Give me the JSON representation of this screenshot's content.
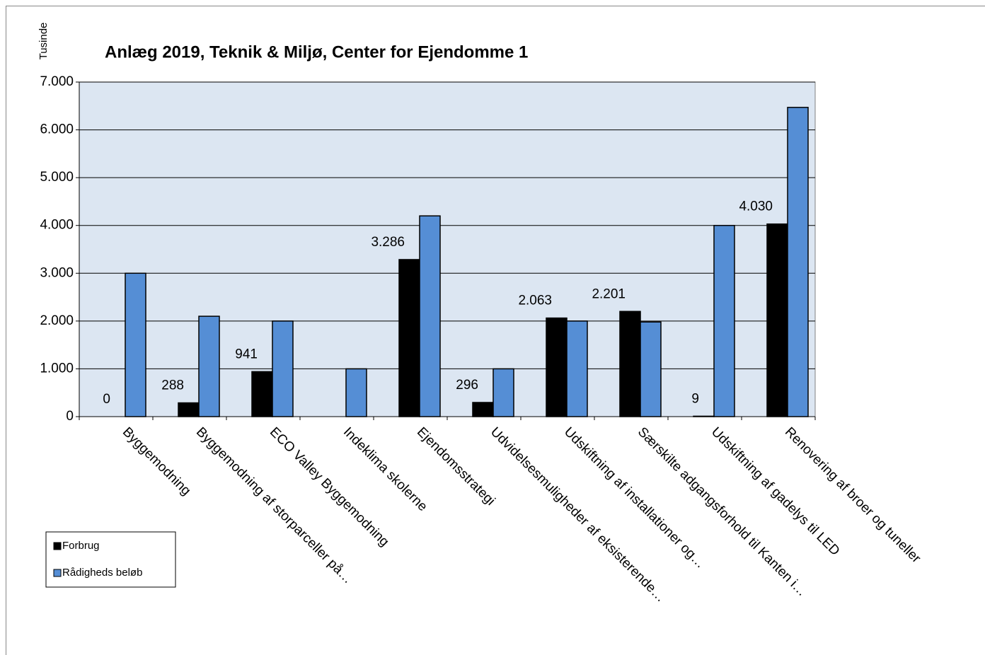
{
  "chart_data": {
    "type": "bar",
    "title": "Anlæg 2019, Teknik & Miljø, Center for Ejendomme 1",
    "y_label": "Tusinde",
    "categories": [
      "Byggemodning",
      "Byggemodning af storparceller på…",
      "ECO Valley Byggemodning",
      "Indeklima skolerne",
      "Ejendomsstrategi",
      "Udvidelsesmuligheder af eksisterende…",
      "Udskiftning af installationer og…",
      "Særskilte adgangsforhold til Kanten i…",
      "Udskiftning af gadelys til LED",
      "Renovering af broer og tuneller"
    ],
    "series": [
      {
        "name": "Forbrug",
        "color": "#000000",
        "values": [
          0,
          288,
          941,
          null,
          3286,
          296,
          2063,
          2201,
          9,
          4030
        ],
        "value_labels": [
          "0",
          "288",
          "941",
          null,
          "3.286",
          "296",
          "2.063",
          "2.201",
          "9",
          "4.030"
        ]
      },
      {
        "name": "Rådigheds beløb",
        "color": "#558ed5",
        "values": [
          3000,
          2100,
          2000,
          1000,
          4200,
          1000,
          2000,
          1980,
          4000,
          6470
        ]
      }
    ],
    "ylim": [
      0,
      7000
    ],
    "yticks": [
      0,
      {
        "value": 1000,
        "label": "1.000"
      },
      {
        "value": 2000,
        "label": "2.000"
      },
      {
        "value": 3000,
        "label": "3.000"
      },
      {
        "value": 4000,
        "label": "4.000"
      },
      {
        "value": 5000,
        "label": "5.000"
      },
      {
        "value": 6000,
        "label": "6.000"
      },
      {
        "value": 7000,
        "label": "7.000"
      }
    ],
    "grid": true,
    "legend": "bottom-left",
    "plot_background": "#dce6f2"
  }
}
